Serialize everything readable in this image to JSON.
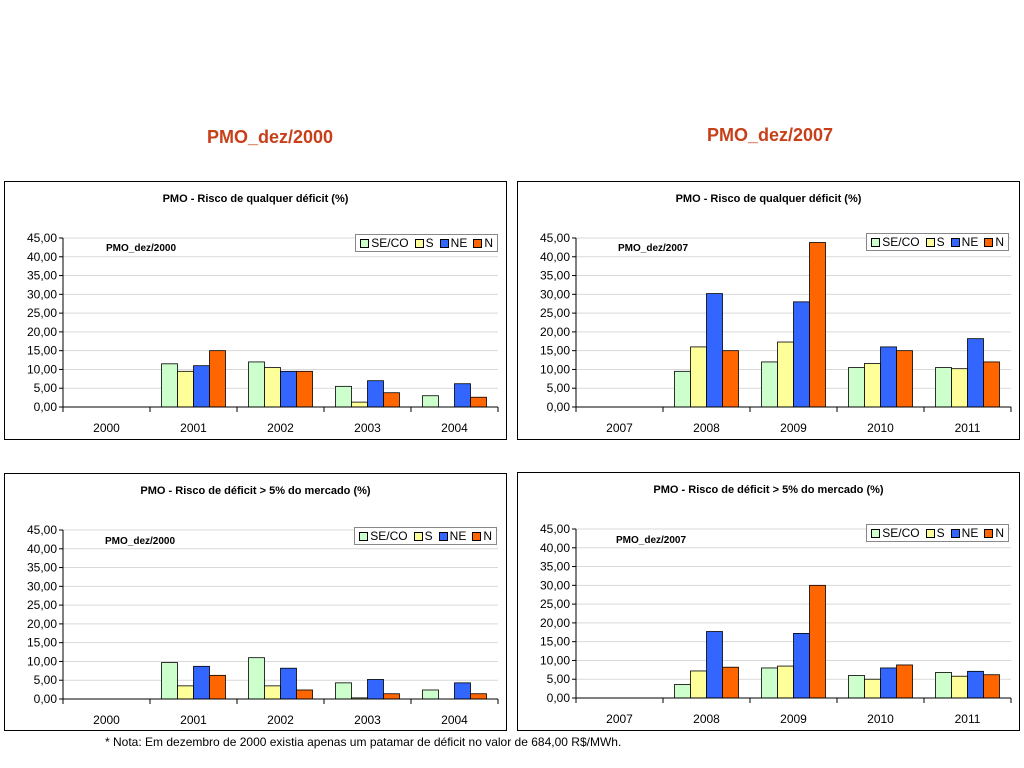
{
  "headings": {
    "left": "PMO_dez/2000",
    "right": "PMO_dez/2007"
  },
  "note": "* Nota: Em dezembro de 2000 existia apenas um patamar de déficit no valor de 684,00 R$/MWh.",
  "colors": {
    "SE/CO": "#ccffcc",
    "S": "#ffff99",
    "NE": "#3366ff",
    "N": "#ff6600"
  },
  "chart_data": [
    {
      "type": "bar",
      "title": "PMO - Risco de qualquer déficit (%)",
      "inner_label": "PMO_dez/2000",
      "categories": [
        "2000",
        "2001",
        "2002",
        "2003",
        "2004"
      ],
      "ylim": [
        0,
        45
      ],
      "yticks": [
        "0,00",
        "5,00",
        "10,00",
        "15,00",
        "20,00",
        "25,00",
        "30,00",
        "35,00",
        "40,00",
        "45,00"
      ],
      "grid": true,
      "legend_position": "top-right",
      "series": [
        {
          "name": "SE/CO",
          "values": [
            null,
            11.5,
            12.0,
            5.5,
            3.0
          ]
        },
        {
          "name": "S",
          "values": [
            null,
            9.5,
            10.5,
            1.3,
            null
          ]
        },
        {
          "name": "NE",
          "values": [
            null,
            11.0,
            9.5,
            7.0,
            6.2
          ]
        },
        {
          "name": "N",
          "values": [
            null,
            15.0,
            9.5,
            3.8,
            2.6
          ]
        }
      ]
    },
    {
      "type": "bar",
      "title": "PMO - Risco de qualquer déficit (%)",
      "inner_label": "PMO_dez/2007",
      "categories": [
        "2007",
        "2008",
        "2009",
        "2010",
        "2011"
      ],
      "ylim": [
        0,
        45
      ],
      "yticks": [
        "0,00",
        "5,00",
        "10,00",
        "15,00",
        "20,00",
        "25,00",
        "30,00",
        "35,00",
        "40,00",
        "45,00"
      ],
      "grid": true,
      "legend_position": "top-right",
      "series": [
        {
          "name": "SE/CO",
          "values": [
            null,
            9.5,
            12.0,
            10.5,
            10.5
          ]
        },
        {
          "name": "S",
          "values": [
            null,
            16.0,
            17.3,
            11.6,
            10.2
          ]
        },
        {
          "name": "NE",
          "values": [
            null,
            30.2,
            28.0,
            16.0,
            18.2
          ]
        },
        {
          "name": "N",
          "values": [
            null,
            15.0,
            43.8,
            15.0,
            12.0
          ]
        }
      ]
    },
    {
      "type": "bar",
      "title": "PMO -  Risco de déficit > 5% do mercado (%)",
      "inner_label": "PMO_dez/2000",
      "categories": [
        "2000",
        "2001",
        "2002",
        "2003",
        "2004"
      ],
      "ylim": [
        0,
        45
      ],
      "yticks": [
        "0,00",
        "5,00",
        "10,00",
        "15,00",
        "20,00",
        "25,00",
        "30,00",
        "35,00",
        "40,00",
        "45,00"
      ],
      "grid": true,
      "legend_position": "top-right",
      "series": [
        {
          "name": "SE/CO",
          "values": [
            null,
            9.7,
            11.0,
            4.3,
            2.4
          ]
        },
        {
          "name": "S",
          "values": [
            null,
            3.5,
            3.5,
            0.3,
            null
          ]
        },
        {
          "name": "NE",
          "values": [
            null,
            8.7,
            8.2,
            5.2,
            4.3
          ]
        },
        {
          "name": "N",
          "values": [
            null,
            6.3,
            2.4,
            1.4,
            1.4
          ]
        }
      ]
    },
    {
      "type": "bar",
      "title": "PMO -  Risco de déficit > 5% do mercado (%)",
      "inner_label": "PMO_dez/2007",
      "categories": [
        "2007",
        "2008",
        "2009",
        "2010",
        "2011"
      ],
      "ylim": [
        0,
        45
      ],
      "yticks": [
        "0,00",
        "5,00",
        "10,00",
        "15,00",
        "20,00",
        "25,00",
        "30,00",
        "35,00",
        "40,00",
        "45,00"
      ],
      "grid": true,
      "legend_position": "top-right",
      "series": [
        {
          "name": "SE/CO",
          "values": [
            null,
            3.6,
            8.0,
            6.0,
            6.8
          ]
        },
        {
          "name": "S",
          "values": [
            null,
            7.2,
            8.5,
            5.0,
            5.8
          ]
        },
        {
          "name": "NE",
          "values": [
            null,
            17.7,
            17.2,
            8.0,
            7.1
          ]
        },
        {
          "name": "N",
          "values": [
            null,
            8.2,
            30.0,
            8.8,
            6.2
          ]
        }
      ]
    }
  ]
}
